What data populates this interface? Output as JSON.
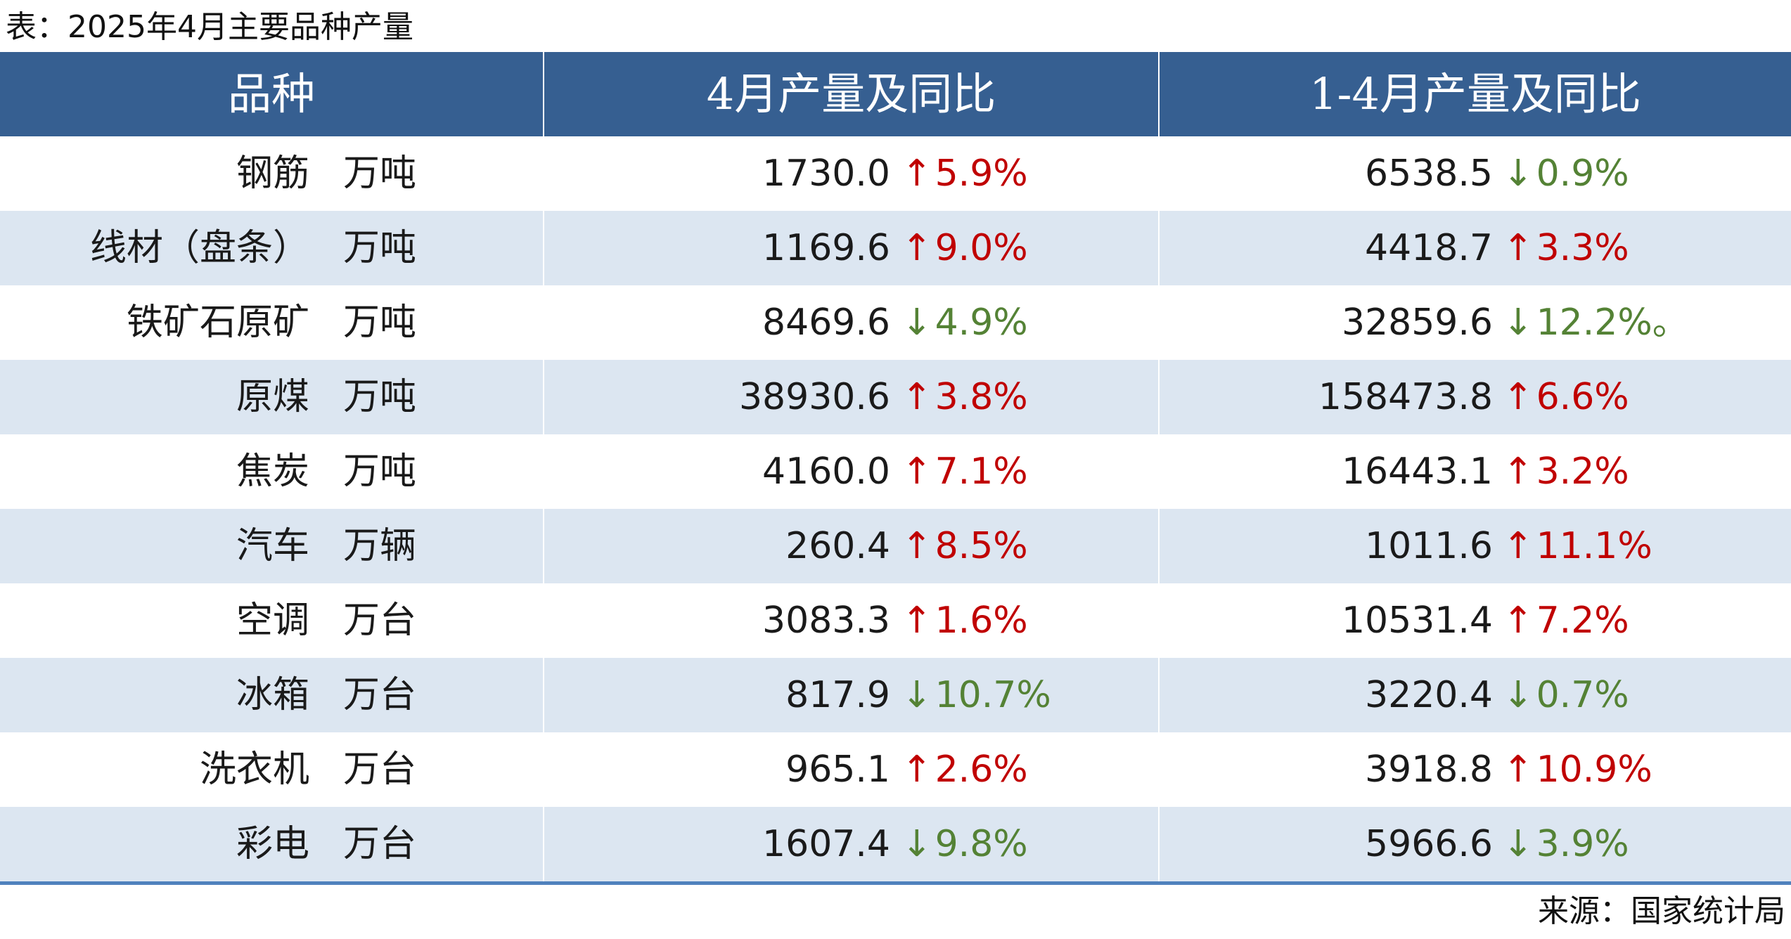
{
  "caption": "表：2025年4月主要品种产量",
  "headers": {
    "variety": "品种",
    "april": "4月产量及同比",
    "ytd": "1-4月产量及同比"
  },
  "rows": [
    {
      "name": "钢筋",
      "unit": "万吨",
      "april_value": "1730.0",
      "april_dir": "up",
      "april_change": "5.9%",
      "ytd_value": "6538.5",
      "ytd_dir": "down",
      "ytd_change": "0.9%"
    },
    {
      "name": "线材（盘条）",
      "unit": "万吨",
      "april_value": "1169.6",
      "april_dir": "up",
      "april_change": "9.0%",
      "ytd_value": "4418.7",
      "ytd_dir": "up",
      "ytd_change": "3.3%"
    },
    {
      "name": "铁矿石原矿",
      "unit": "万吨",
      "april_value": "8469.6",
      "april_dir": "down",
      "april_change": "4.9%",
      "ytd_value": "32859.6",
      "ytd_dir": "down",
      "ytd_change": "12.2%。"
    },
    {
      "name": "原煤",
      "unit": "万吨",
      "april_value": "38930.6",
      "april_dir": "up",
      "april_change": "3.8%",
      "ytd_value": "158473.8",
      "ytd_dir": "up",
      "ytd_change": "6.6%"
    },
    {
      "name": "焦炭",
      "unit": "万吨",
      "april_value": "4160.0",
      "april_dir": "up",
      "april_change": "7.1%",
      "ytd_value": "16443.1",
      "ytd_dir": "up",
      "ytd_change": "3.2%"
    },
    {
      "name": "汽车",
      "unit": "万辆",
      "april_value": "260.4",
      "april_dir": "up",
      "april_change": "8.5%",
      "ytd_value": "1011.6",
      "ytd_dir": "up",
      "ytd_change": "11.1%"
    },
    {
      "name": "空调",
      "unit": "万台",
      "april_value": "3083.3",
      "april_dir": "up",
      "april_change": "1.6%",
      "ytd_value": "10531.4",
      "ytd_dir": "up",
      "ytd_change": "7.2%"
    },
    {
      "name": "冰箱",
      "unit": "万台",
      "april_value": "817.9",
      "april_dir": "down",
      "april_change": "10.7%",
      "ytd_value": "3220.4",
      "ytd_dir": "down",
      "ytd_change": "0.7%"
    },
    {
      "name": "洗衣机",
      "unit": "万台",
      "april_value": "965.1",
      "april_dir": "up",
      "april_change": "2.6%",
      "ytd_value": "3918.8",
      "ytd_dir": "up",
      "ytd_change": "10.9%"
    },
    {
      "name": "彩电",
      "unit": "万台",
      "april_value": "1607.4",
      "april_dir": "down",
      "april_change": "9.8%",
      "ytd_value": "5966.6",
      "ytd_dir": "down",
      "ytd_change": "3.9%"
    }
  ],
  "arrows": {
    "up": "↑",
    "down": "↓"
  },
  "colors": {
    "header_bg": "#365f91",
    "stripe_bg": "#dce6f1",
    "up": "#c00000",
    "down": "#548235"
  },
  "source": "来源：国家统计局"
}
